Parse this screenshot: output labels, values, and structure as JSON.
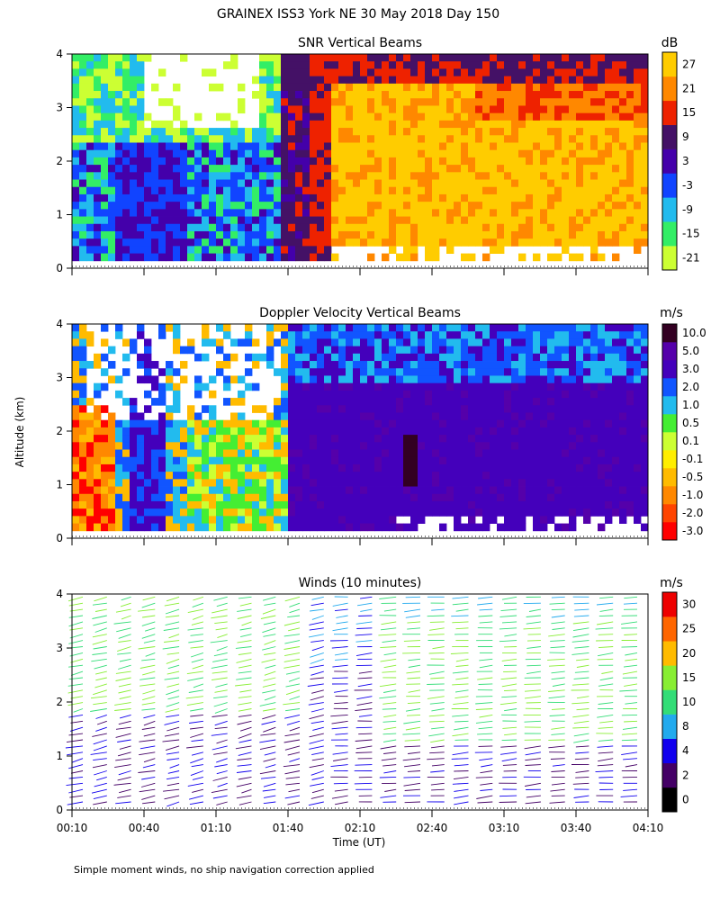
{
  "figure": {
    "title": "GRAINEX ISS3 York NE  30 May 2018 Day 150",
    "footnote": "Simple moment winds, no ship navigation correction applied",
    "y_axis_label": "Altitude (km)",
    "x_axis_label": "Time (UT)"
  },
  "colors": {
    "snr_palette": [
      "#ccff33",
      "#33ee66",
      "#22bbee",
      "#1144ff",
      "#4400aa",
      "#441166",
      "#ee2200",
      "#ff8800",
      "#ffcc00"
    ],
    "doppler_palette": [
      "#ff0000",
      "#ff4400",
      "#ff8800",
      "#ffbb00",
      "#ffee00",
      "#ccff33",
      "#44ee33",
      "#22bbee",
      "#1155ff",
      "#4400bb",
      "#5500aa",
      "#330022"
    ],
    "wind_palette": [
      "#000000",
      "#440066",
      "#1100ee",
      "#22aaee",
      "#33dd77",
      "#88ee33",
      "#ffbb00",
      "#ff6600",
      "#ee0000"
    ]
  },
  "chart_data": [
    {
      "type": "heatmap",
      "title": "SNR Vertical Beams",
      "colorbar_unit": "dB",
      "colorbar_ticks": [
        "-21",
        "-15",
        "-9",
        "-3",
        "3",
        "9",
        "15",
        "21",
        "27"
      ],
      "x_ticks": [
        "00:10",
        "00:40",
        "01:10",
        "01:40",
        "02:10",
        "02:40",
        "03:10",
        "03:40",
        "04:10"
      ],
      "xlim_hours_ut": [
        0.1667,
        4.1667
      ],
      "ylim_km": [
        0,
        4
      ],
      "y_ticks": [
        "0",
        "1",
        "2",
        "3",
        "4"
      ],
      "description_regions": [
        {
          "time_range": [
            "00:10",
            "01:50"
          ],
          "snr_db_range": [
            -21,
            3
          ]
        },
        {
          "time_range": [
            "01:50",
            "02:10"
          ],
          "snr_db_range": [
            9,
            15
          ]
        },
        {
          "time_range": [
            "02:10",
            "04:10"
          ],
          "snr_db_range": [
            15,
            27
          ]
        }
      ]
    },
    {
      "type": "heatmap",
      "title": "Doppler Velocity Vertical Beams",
      "colorbar_unit": "m/s",
      "colorbar_ticks": [
        "-3.0",
        "-2.0",
        "-1.0",
        "-0.5",
        "-0.1",
        "0.1",
        "0.5",
        "1.0",
        "2.0",
        "3.0",
        "5.0",
        "10.0"
      ],
      "x_ticks": [
        "00:10",
        "00:40",
        "01:10",
        "01:40",
        "02:10",
        "02:40",
        "03:10",
        "03:40",
        "04:10"
      ],
      "xlim_hours_ut": [
        0.1667,
        4.1667
      ],
      "ylim_km": [
        0,
        4
      ],
      "y_ticks": [
        "0",
        "1",
        "2",
        "3",
        "4"
      ],
      "description_regions": [
        {
          "time_range": [
            "00:10",
            "01:50"
          ],
          "velocity_ms_range": [
            -3.0,
            5.0
          ]
        },
        {
          "time_range": [
            "01:50",
            "04:10"
          ],
          "velocity_ms_range": [
            3.0,
            5.0
          ]
        }
      ]
    },
    {
      "type": "scatter",
      "title": "Winds (10 minutes)",
      "colorbar_unit": "m/s",
      "colorbar_ticks": [
        "0",
        "2",
        "4",
        "8",
        "10",
        "15",
        "20",
        "25",
        "30"
      ],
      "x_ticks": [
        "00:10",
        "00:40",
        "01:10",
        "01:40",
        "02:10",
        "02:40",
        "03:10",
        "03:40",
        "04:10"
      ],
      "xlim_hours_ut": [
        0.1667,
        4.1667
      ],
      "ylim_km": [
        0,
        4
      ],
      "y_ticks": [
        "0",
        "1",
        "2",
        "3",
        "4"
      ]
    }
  ]
}
